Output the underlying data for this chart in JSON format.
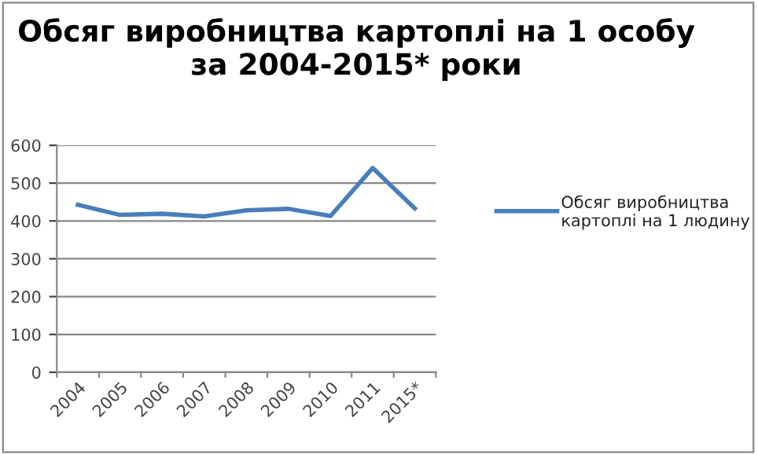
{
  "chart_data": {
    "type": "line",
    "title": "Обсяг виробництва картоплі на 1 особу за 2004-2015* роки",
    "categories": [
      "2004",
      "2005",
      "2006",
      "2007",
      "2008",
      "2009",
      "2010",
      "2011",
      "2015*"
    ],
    "series": [
      {
        "name": "Обсяг виробництва картоплі на 1 людину",
        "color": "#4a7ebb",
        "values": [
          443,
          416,
          419,
          412,
          428,
          432,
          413,
          540,
          433
        ]
      }
    ],
    "ylim": [
      0,
      600
    ],
    "yticks": [
      0,
      100,
      200,
      300,
      400,
      500,
      600
    ],
    "grid": "y",
    "legend": "right",
    "marker": "none",
    "line_style": "solid"
  }
}
